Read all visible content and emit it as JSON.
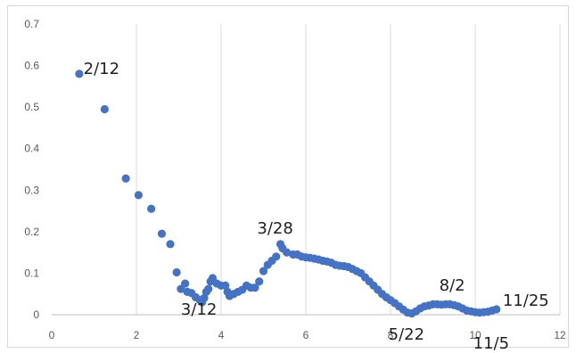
{
  "chart_data": {
    "type": "scatter",
    "title": "",
    "xlabel": "",
    "ylabel": "",
    "xlim": [
      0,
      12
    ],
    "ylim": [
      0,
      0.7
    ],
    "x_ticks": [
      0,
      2,
      4,
      6,
      8,
      10,
      12
    ],
    "x_tick_labels": [
      "0",
      "2",
      "4",
      "6",
      "8",
      "10",
      "12"
    ],
    "y_ticks": [
      0,
      0.1,
      0.2,
      0.3,
      0.4,
      0.5,
      0.6,
      0.7
    ],
    "y_tick_labels": [
      "0",
      "0.1",
      "0.2",
      "0.3",
      "0.4",
      "0.5",
      "0.6",
      "0.7"
    ],
    "grid": {
      "vertical": true,
      "horizontal": false
    },
    "legend": "none",
    "marker_color": "#4472c4",
    "series": [
      {
        "points": [
          [
            0.65,
            0.58
          ],
          [
            1.25,
            0.495
          ],
          [
            1.75,
            0.328
          ],
          [
            2.05,
            0.288
          ],
          [
            2.35,
            0.255
          ],
          [
            2.6,
            0.195
          ],
          [
            2.8,
            0.17
          ],
          [
            2.95,
            0.102
          ],
          [
            3.05,
            0.062
          ],
          [
            3.15,
            0.075
          ],
          [
            3.2,
            0.055
          ],
          [
            3.3,
            0.052
          ],
          [
            3.4,
            0.042
          ],
          [
            3.5,
            0.035
          ],
          [
            3.55,
            0.03
          ],
          [
            3.6,
            0.04
          ],
          [
            3.65,
            0.055
          ],
          [
            3.7,
            0.062
          ],
          [
            3.75,
            0.08
          ],
          [
            3.8,
            0.088
          ],
          [
            3.9,
            0.075
          ],
          [
            4.0,
            0.07
          ],
          [
            4.1,
            0.07
          ],
          [
            4.15,
            0.055
          ],
          [
            4.2,
            0.045
          ],
          [
            4.3,
            0.05
          ],
          [
            4.4,
            0.055
          ],
          [
            4.5,
            0.06
          ],
          [
            4.6,
            0.07
          ],
          [
            4.7,
            0.065
          ],
          [
            4.8,
            0.065
          ],
          [
            4.9,
            0.08
          ],
          [
            5.0,
            0.105
          ],
          [
            5.1,
            0.12
          ],
          [
            5.2,
            0.13
          ],
          [
            5.3,
            0.14
          ],
          [
            5.4,
            0.17
          ],
          [
            5.45,
            0.16
          ],
          [
            5.55,
            0.15
          ],
          [
            5.7,
            0.145
          ],
          [
            5.8,
            0.145
          ],
          [
            5.9,
            0.14
          ],
          [
            6.0,
            0.138
          ],
          [
            6.1,
            0.137
          ],
          [
            6.2,
            0.135
          ],
          [
            6.3,
            0.133
          ],
          [
            6.4,
            0.13
          ],
          [
            6.5,
            0.128
          ],
          [
            6.6,
            0.125
          ],
          [
            6.7,
            0.12
          ],
          [
            6.8,
            0.118
          ],
          [
            6.9,
            0.117
          ],
          [
            7.0,
            0.115
          ],
          [
            7.1,
            0.11
          ],
          [
            7.2,
            0.105
          ],
          [
            7.3,
            0.1
          ],
          [
            7.4,
            0.09
          ],
          [
            7.5,
            0.08
          ],
          [
            7.6,
            0.07
          ],
          [
            7.7,
            0.06
          ],
          [
            7.8,
            0.05
          ],
          [
            7.9,
            0.042
          ],
          [
            8.0,
            0.035
          ],
          [
            8.1,
            0.028
          ],
          [
            8.2,
            0.02
          ],
          [
            8.3,
            0.012
          ],
          [
            8.4,
            0.005
          ],
          [
            8.5,
            0.003
          ],
          [
            8.6,
            0.008
          ],
          [
            8.7,
            0.015
          ],
          [
            8.8,
            0.02
          ],
          [
            8.9,
            0.022
          ],
          [
            9.0,
            0.025
          ],
          [
            9.1,
            0.025
          ],
          [
            9.2,
            0.024
          ],
          [
            9.3,
            0.025
          ],
          [
            9.4,
            0.025
          ],
          [
            9.5,
            0.023
          ],
          [
            9.6,
            0.02
          ],
          [
            9.7,
            0.015
          ],
          [
            9.8,
            0.01
          ],
          [
            9.9,
            0.008
          ],
          [
            10.0,
            0.006
          ],
          [
            10.1,
            0.005
          ],
          [
            10.2,
            0.006
          ],
          [
            10.3,
            0.007
          ],
          [
            10.4,
            0.01
          ],
          [
            10.5,
            0.013
          ]
        ]
      }
    ],
    "annotations": [
      {
        "text": "2/12",
        "x": 0.75,
        "y": 0.58
      },
      {
        "text": "3/12",
        "x": 3.05,
        "y": 0.0
      },
      {
        "text": "3/28",
        "x": 4.85,
        "y": 0.195
      },
      {
        "text": "5/22",
        "x": 7.95,
        "y": -0.06
      },
      {
        "text": "8/2",
        "x": 9.15,
        "y": 0.058
      },
      {
        "text": "11/25",
        "x": 10.65,
        "y": 0.022
      },
      {
        "text": "11/5",
        "x": 9.95,
        "y": -0.082
      }
    ]
  }
}
